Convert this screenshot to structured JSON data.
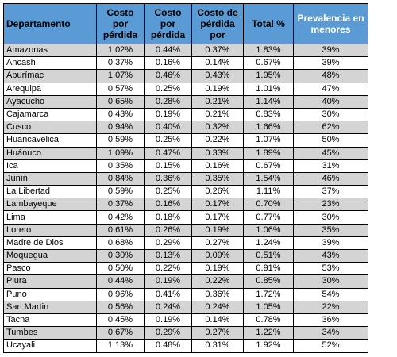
{
  "table": {
    "headers": [
      "Departamento",
      "Costo por pérdida",
      "Costo por pérdida",
      "Costo de pérdida por",
      "Total %",
      "Prevalencia en menores"
    ],
    "rows": [
      [
        "Amazonas",
        "1.02%",
        "0.44%",
        "0.37%",
        "1.83%",
        "39%"
      ],
      [
        "Ancash",
        "0.37%",
        "0.16%",
        "0.14%",
        "0.67%",
        "39%"
      ],
      [
        "Apurímac",
        "1.07%",
        "0.46%",
        "0.43%",
        "1.95%",
        "48%"
      ],
      [
        "Arequipa",
        "0.57%",
        "0.25%",
        "0.19%",
        "1.01%",
        "47%"
      ],
      [
        "Ayacucho",
        "0.65%",
        "0.28%",
        "0.21%",
        "1.14%",
        "40%"
      ],
      [
        "Cajamarca",
        "0.43%",
        "0.19%",
        "0.21%",
        "0.83%",
        "30%"
      ],
      [
        "Cusco",
        "0.94%",
        "0.40%",
        "0.32%",
        "1.66%",
        "62%"
      ],
      [
        "Huancavelica",
        "0.59%",
        "0.25%",
        "0.22%",
        "1.07%",
        "50%"
      ],
      [
        "Huánuco",
        "1.09%",
        "0.47%",
        "0.33%",
        "1.89%",
        "45%"
      ],
      [
        "Ica",
        "0.35%",
        "0.15%",
        "0.16%",
        "0.67%",
        "31%"
      ],
      [
        "Junín",
        "0.84%",
        "0.36%",
        "0.35%",
        "1.54%",
        "46%"
      ],
      [
        "La Libertad",
        "0.59%",
        "0.25%",
        "0.26%",
        "1.11%",
        "37%"
      ],
      [
        "Lambayeque",
        "0.37%",
        "0.16%",
        "0.17%",
        "0.70%",
        "23%"
      ],
      [
        "Lima",
        "0.42%",
        "0.18%",
        "0.17%",
        "0.77%",
        "30%"
      ],
      [
        "Loreto",
        "0.61%",
        "0.26%",
        "0.19%",
        "1.06%",
        "35%"
      ],
      [
        "Madre de Dios",
        "0.68%",
        "0.29%",
        "0.27%",
        "1.24%",
        "39%"
      ],
      [
        "Moquegua",
        "0.30%",
        "0.13%",
        "0.09%",
        "0.51%",
        "43%"
      ],
      [
        "Pasco",
        "0.50%",
        "0.22%",
        "0.19%",
        "0.91%",
        "53%"
      ],
      [
        "Piura",
        "0.44%",
        "0.19%",
        "0.22%",
        "0.85%",
        "30%"
      ],
      [
        "Puno",
        "0.96%",
        "0.41%",
        "0.36%",
        "1.72%",
        "54%"
      ],
      [
        "San Martin",
        "0.56%",
        "0.24%",
        "0.24%",
        "1.05%",
        "22%"
      ],
      [
        "Tacna",
        "0.45%",
        "0.19%",
        "0.14%",
        "0.78%",
        "36%"
      ],
      [
        "Tumbes",
        "0.67%",
        "0.29%",
        "0.27%",
        "1.22%",
        "34%"
      ],
      [
        "Ucayali",
        "1.13%",
        "0.48%",
        "0.31%",
        "1.92%",
        "52%"
      ]
    ],
    "colors": {
      "header_bg": "#5b9bd5",
      "shaded_row": "#d4d4d4",
      "plain_row": "#ffffff",
      "border": "#000000"
    }
  }
}
